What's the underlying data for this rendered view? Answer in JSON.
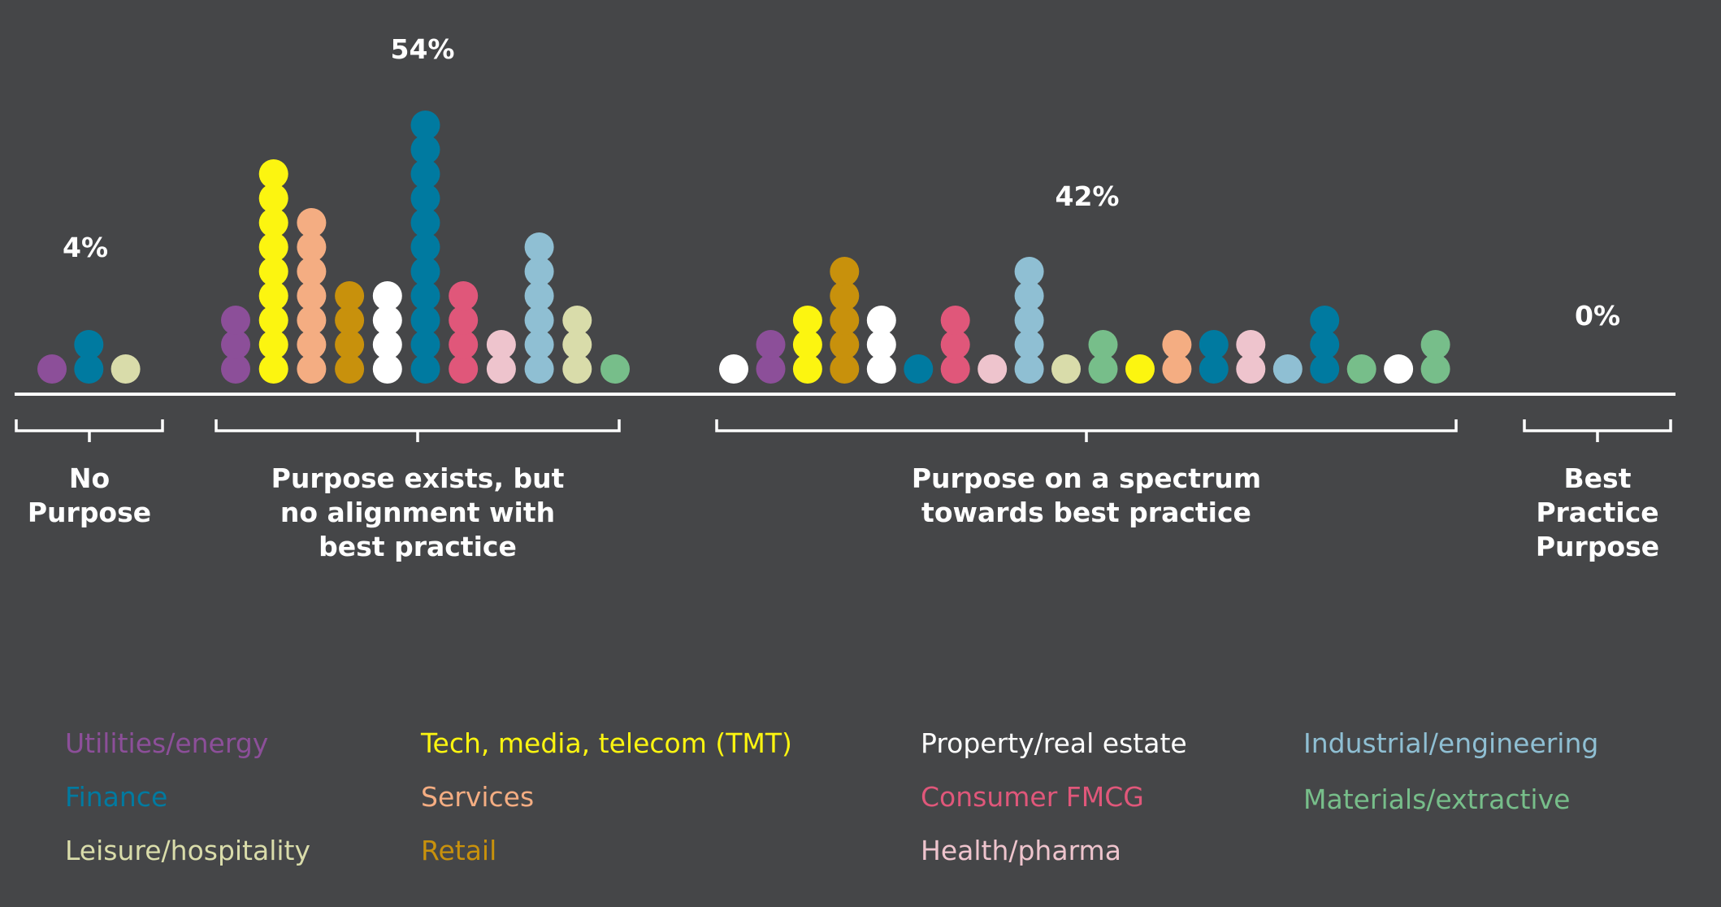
{
  "chart_data": {
    "type": "dot-plot",
    "colors": {
      "utilities": "#8c4f99",
      "finance": "#007aa0",
      "leisure": "#d9dcaa",
      "tmt": "#fcf510",
      "services": "#f4ad82",
      "retail": "#c8910c",
      "property": "#ffffff",
      "consumer": "#e0577a",
      "health": "#eec4cd",
      "industrial": "#8fbfd3",
      "materials": "#77be8a"
    },
    "legend": [
      {
        "key": "utilities",
        "label": "Utilities/energy"
      },
      {
        "key": "finance",
        "label": "Finance"
      },
      {
        "key": "leisure",
        "label": "Leisure/hospitality"
      },
      {
        "key": "tmt",
        "label": "Tech, media, telecom (TMT)"
      },
      {
        "key": "services",
        "label": "Services"
      },
      {
        "key": "retail",
        "label": "Retail"
      },
      {
        "key": "property",
        "label": "Property/real estate"
      },
      {
        "key": "consumer",
        "label": "Consumer FMCG"
      },
      {
        "key": "health",
        "label": "Health/pharma"
      },
      {
        "key": "industrial",
        "label": "Industrial/engineering"
      },
      {
        "key": "materials",
        "label": "Materials/extractive"
      }
    ],
    "groups": [
      {
        "label_lines": [
          "No",
          "Purpose"
        ],
        "percent": "4%",
        "columns": [
          {
            "sector": "utilities",
            "count": 1
          },
          {
            "sector": "finance",
            "count": 2
          },
          {
            "sector": "leisure",
            "count": 1
          }
        ]
      },
      {
        "label_lines": [
          "Purpose exists, but",
          "no alignment with",
          "best practice"
        ],
        "percent": "54%",
        "columns": [
          {
            "sector": "utilities",
            "count": 3
          },
          {
            "sector": "tmt",
            "count": 9
          },
          {
            "sector": "services",
            "count": 7
          },
          {
            "sector": "retail",
            "count": 4
          },
          {
            "sector": "property",
            "count": 4
          },
          {
            "sector": "finance",
            "count": 11
          },
          {
            "sector": "consumer",
            "count": 4
          },
          {
            "sector": "health",
            "count": 2
          },
          {
            "sector": "industrial",
            "count": 6
          },
          {
            "sector": "leisure",
            "count": 3
          },
          {
            "sector": "materials",
            "count": 1
          }
        ]
      },
      {
        "label_lines": [
          "Purpose on a spectrum",
          "towards best practice"
        ],
        "percent": "42%",
        "columns": [
          {
            "sector": "property",
            "count": 1
          },
          {
            "sector": "utilities",
            "count": 2
          },
          {
            "sector": "tmt",
            "count": 3
          },
          {
            "sector": "retail",
            "count": 5
          },
          {
            "sector": "property",
            "count": 3
          },
          {
            "sector": "finance",
            "count": 1
          },
          {
            "sector": "consumer",
            "count": 3
          },
          {
            "sector": "health",
            "count": 1
          },
          {
            "sector": "industrial",
            "count": 5
          },
          {
            "sector": "leisure",
            "count": 1
          },
          {
            "sector": "materials",
            "count": 2
          },
          {
            "sector": "tmt",
            "count": 1
          },
          {
            "sector": "services",
            "count": 2
          },
          {
            "sector": "finance",
            "count": 2
          },
          {
            "sector": "health",
            "count": 2
          },
          {
            "sector": "industrial",
            "count": 1
          },
          {
            "sector": "finance",
            "count": 3
          },
          {
            "sector": "materials",
            "count": 1
          },
          {
            "sector": "property",
            "count": 1
          },
          {
            "sector": "materials",
            "count": 2
          }
        ]
      },
      {
        "label_lines": [
          "Best",
          "Practice",
          "Purpose"
        ],
        "percent": "0%",
        "columns": []
      }
    ]
  }
}
